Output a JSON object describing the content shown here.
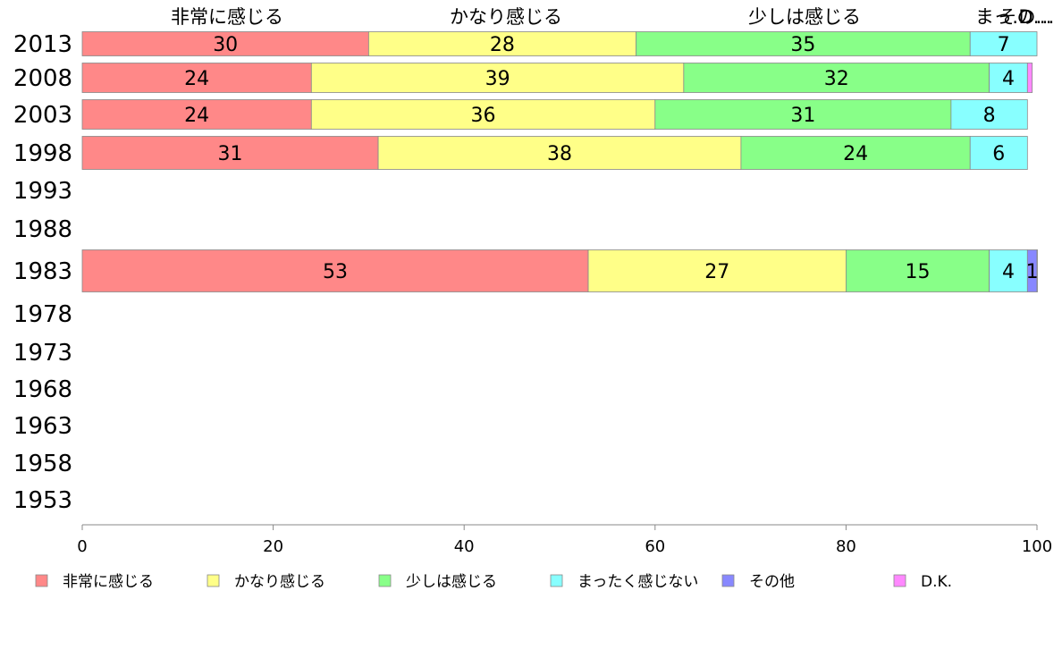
{
  "chart_data": {
    "type": "bar",
    "orientation": "horizontal",
    "stacked": true,
    "years": [
      "2013",
      "2008",
      "2003",
      "1998",
      "1993",
      "1988",
      "1983",
      "1978",
      "1973",
      "1968",
      "1963",
      "1958",
      "1953"
    ],
    "series": [
      {
        "name": "非常に感じる",
        "color": "#ff8888",
        "values": [
          30,
          24,
          24,
          31,
          null,
          null,
          53,
          null,
          null,
          null,
          null,
          null,
          null
        ]
      },
      {
        "name": "かなり感じる",
        "color": "#ffff88",
        "values": [
          28,
          39,
          36,
          38,
          null,
          null,
          27,
          null,
          null,
          null,
          null,
          null,
          null
        ]
      },
      {
        "name": "少しは感じる",
        "color": "#88ff88",
        "values": [
          35,
          32,
          31,
          24,
          null,
          null,
          15,
          null,
          null,
          null,
          null,
          null,
          null
        ]
      },
      {
        "name": "まったく感じない",
        "color": "#88ffff",
        "values": [
          7,
          4,
          8,
          6,
          null,
          null,
          4,
          null,
          null,
          null,
          null,
          null,
          null
        ]
      },
      {
        "name": "その他",
        "color": "#8888ff",
        "values": [
          0,
          0,
          0,
          0,
          null,
          null,
          1,
          null,
          null,
          null,
          null,
          null,
          null
        ]
      },
      {
        "name": "D.K.",
        "color": "#ff88ff",
        "values": [
          0,
          0.5,
          0,
          0,
          null,
          null,
          0.3,
          null,
          null,
          null,
          null,
          null,
          null
        ]
      }
    ],
    "shown_labels": [
      [
        "30",
        "28",
        "35",
        "7",
        "",
        ""
      ],
      [
        "24",
        "39",
        "32",
        "4",
        "",
        ""
      ],
      [
        "24",
        "36",
        "31",
        "8",
        "",
        ""
      ],
      [
        "31",
        "38",
        "24",
        "6",
        "",
        ""
      ],
      [
        "",
        "",
        "",
        "",
        "",
        ""
      ],
      [
        "",
        "",
        "",
        "",
        "",
        ""
      ],
      [
        "53",
        "27",
        "15",
        "4",
        "1",
        ""
      ],
      [
        "",
        "",
        "",
        "",
        "",
        ""
      ],
      [
        "",
        "",
        "",
        "",
        "",
        ""
      ],
      [
        "",
        "",
        "",
        "",
        "",
        ""
      ],
      [
        "",
        "",
        "",
        "",
        "",
        ""
      ],
      [
        "",
        "",
        "",
        "",
        "",
        ""
      ],
      [
        "",
        "",
        "",
        "",
        "",
        ""
      ]
    ],
    "top_labels": [
      "非常に感じる",
      "かなり感じる",
      "少しは感じる",
      "まっ…",
      "その…",
      "D…"
    ],
    "xticks": [
      0,
      20,
      40,
      60,
      80,
      100
    ],
    "xlim": [
      0,
      100
    ],
    "xlabel": "",
    "ylabel": "",
    "title": "",
    "legend_placement": "bottom",
    "grid": false
  }
}
